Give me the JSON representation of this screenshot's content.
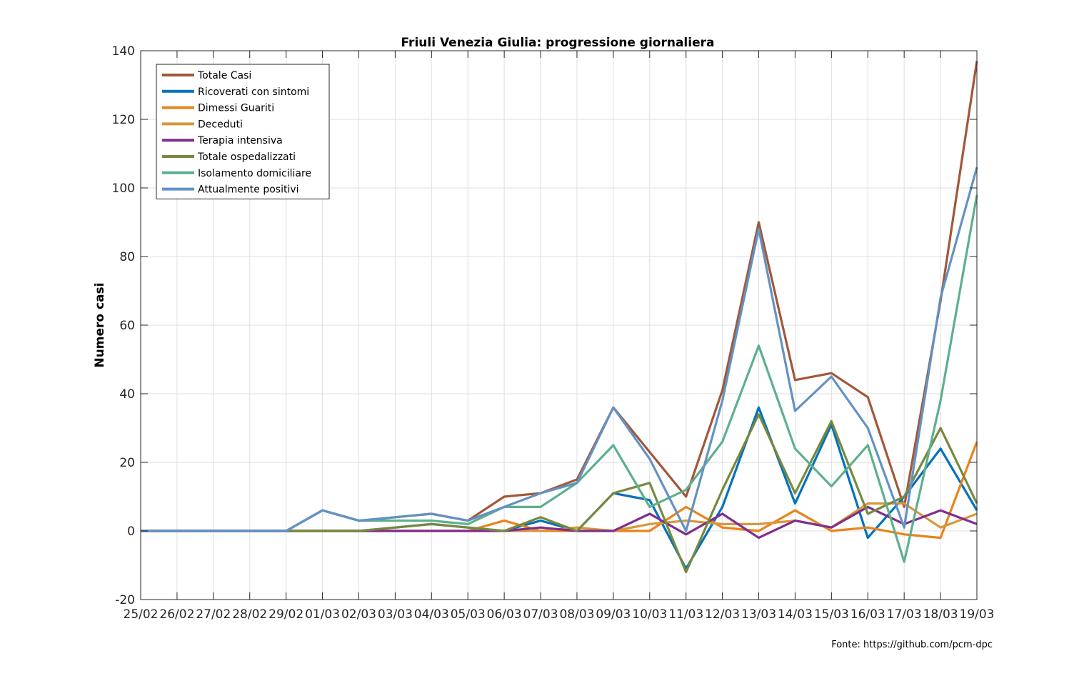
{
  "chart_data": {
    "type": "line",
    "title": "Friuli Venezia Giulia: progressione giornaliera",
    "xlabel": "",
    "ylabel": "Numero casi",
    "ylim": [
      -20,
      140
    ],
    "yticks": [
      -20,
      0,
      20,
      40,
      60,
      80,
      100,
      120,
      140
    ],
    "categories": [
      "25/02",
      "26/02",
      "27/02",
      "28/02",
      "29/02",
      "01/03",
      "02/03",
      "03/03",
      "04/03",
      "05/03",
      "06/03",
      "07/03",
      "08/03",
      "09/03",
      "10/03",
      "11/03",
      "12/03",
      "13/03",
      "14/03",
      "15/03",
      "16/03",
      "17/03",
      "18/03",
      "19/03"
    ],
    "grid": true,
    "legend_position": "top-left",
    "series": [
      {
        "name": "Totale Casi",
        "color": "#A2573A",
        "values": [
          0,
          0,
          0,
          0,
          0,
          6,
          3,
          4,
          5,
          3,
          10,
          11,
          15,
          36,
          23,
          10,
          41,
          90,
          44,
          46,
          39,
          7,
          67,
          137
        ]
      },
      {
        "name": "Ricoverati con sintomi",
        "color": "#0072BD",
        "values": [
          0,
          0,
          0,
          0,
          0,
          0,
          0,
          1,
          2,
          1,
          0,
          3,
          0,
          11,
          9,
          -11,
          7,
          36,
          8,
          31,
          -2,
          10,
          24,
          6
        ]
      },
      {
        "name": "Dimessi Guariti",
        "color": "#E8841C",
        "values": [
          0,
          0,
          0,
          0,
          0,
          0,
          0,
          0,
          0,
          0,
          3,
          0,
          0,
          0,
          0,
          7,
          1,
          0,
          6,
          0,
          1,
          -1,
          -2,
          26
        ]
      },
      {
        "name": "Deceduti",
        "color": "#D9963A",
        "values": [
          0,
          0,
          0,
          0,
          0,
          0,
          0,
          0,
          0,
          0,
          0,
          0,
          1,
          0,
          2,
          3,
          2,
          2,
          3,
          1,
          8,
          8,
          1,
          5
        ]
      },
      {
        "name": "Terapia intensiva",
        "color": "#7E2F8E",
        "values": [
          0,
          0,
          0,
          0,
          0,
          0,
          0,
          0,
          0,
          0,
          0,
          1,
          0,
          0,
          5,
          -1,
          5,
          -2,
          3,
          1,
          7,
          2,
          6,
          2
        ]
      },
      {
        "name": "Totale ospedalizzati",
        "color": "#77893E",
        "values": [
          0,
          0,
          0,
          0,
          0,
          0,
          0,
          1,
          2,
          1,
          0,
          4,
          0,
          11,
          14,
          -12,
          12,
          34,
          11,
          32,
          5,
          10,
          30,
          8
        ]
      },
      {
        "name": "Isolamento domiciliare",
        "color": "#5DB08D",
        "values": [
          0,
          0,
          0,
          0,
          0,
          6,
          3,
          3,
          3,
          2,
          7,
          7,
          14,
          25,
          7,
          12,
          26,
          54,
          24,
          13,
          25,
          -9,
          38,
          98
        ]
      },
      {
        "name": "Attualmente positivi",
        "color": "#6392C4",
        "values": [
          0,
          0,
          0,
          0,
          0,
          6,
          3,
          4,
          5,
          3,
          7,
          11,
          14,
          36,
          21,
          0,
          38,
          88,
          35,
          45,
          30,
          1,
          68,
          106
        ]
      }
    ],
    "source_note": "Fonte: https://github.com/pcm-dpc"
  }
}
